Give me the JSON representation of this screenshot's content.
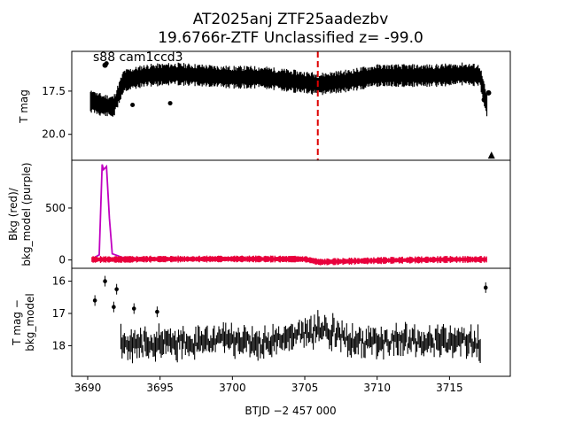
{
  "title_line1": "AT2025anj  ZTF25aadezbv",
  "title_line2": "19.6766r-ZTF Unclassified z= -99.0",
  "colors": {
    "data": "#000000",
    "bkg": "#e8003c",
    "bkg_model": "#c000c0",
    "marker": "#dd0000"
  },
  "chart_data": [
    {
      "type": "scatter",
      "annotation": "s88 cam1ccd3",
      "ylabel": "T mag",
      "ylim": [
        21.5,
        15.2
      ],
      "yticks": [
        "15.0",
        "17.5",
        "20.0"
      ],
      "xlim": [
        3688.9,
        3719.2
      ],
      "vline_x": 3705.9,
      "upper_limit_point": {
        "x": 3717.9,
        "y": 21.2
      },
      "bands": [
        {
          "x": 3690.2,
          "y": 18.1
        },
        {
          "x": 3691.0,
          "y": 18.3
        },
        {
          "x": 3691.8,
          "y": 18.4
        },
        {
          "x": 3692.5,
          "y": 16.9
        },
        {
          "x": 3694.0,
          "y": 16.6
        },
        {
          "x": 3696.0,
          "y": 16.5
        },
        {
          "x": 3698.0,
          "y": 16.6
        },
        {
          "x": 3700.0,
          "y": 16.7
        },
        {
          "x": 3702.0,
          "y": 16.7
        },
        {
          "x": 3704.0,
          "y": 16.9
        },
        {
          "x": 3706.0,
          "y": 17.1
        },
        {
          "x": 3708.0,
          "y": 16.9
        },
        {
          "x": 3710.0,
          "y": 16.6
        },
        {
          "x": 3712.0,
          "y": 16.6
        },
        {
          "x": 3714.0,
          "y": 16.6
        },
        {
          "x": 3716.0,
          "y": 16.5
        },
        {
          "x": 3717.1,
          "y": 16.6
        },
        {
          "x": 3717.6,
          "y": 18.4
        }
      ],
      "outliers": [
        {
          "x": 3691.3,
          "y": 15.9
        },
        {
          "x": 3693.1,
          "y": 18.3
        },
        {
          "x": 3695.7,
          "y": 18.2
        }
      ]
    },
    {
      "type": "line",
      "ylabel_line1": "Bkg (red)/",
      "ylabel_line2": "bkg_model (purple)",
      "ylim": [
        -80,
        960
      ],
      "yticks": [
        "0",
        "500"
      ],
      "xlim": [
        3688.9,
        3719.2
      ],
      "series": [
        {
          "points": [
            {
              "x": 3690.3,
              "y": 10
            },
            {
              "x": 3690.8,
              "y": 50
            },
            {
              "x": 3691.0,
              "y": 920
            },
            {
              "x": 3691.1,
              "y": 870
            },
            {
              "x": 3691.3,
              "y": 900
            },
            {
              "x": 3691.5,
              "y": 400
            },
            {
              "x": 3691.7,
              "y": 60
            },
            {
              "x": 3692.5,
              "y": 20
            },
            {
              "x": 3705.0,
              "y": 10
            },
            {
              "x": 3706.0,
              "y": -15
            },
            {
              "x": 3710.0,
              "y": 0
            },
            {
              "x": 3717.6,
              "y": 5
            }
          ]
        },
        {
          "points": [
            {
              "x": 3690.3,
              "y": 5
            },
            {
              "x": 3692.5,
              "y": 5
            },
            {
              "x": 3694.0,
              "y": 8
            },
            {
              "x": 3700.0,
              "y": 10
            },
            {
              "x": 3705.0,
              "y": 8
            },
            {
              "x": 3706.0,
              "y": -20
            },
            {
              "x": 3708.0,
              "y": -12
            },
            {
              "x": 3711.0,
              "y": -3
            },
            {
              "x": 3715.0,
              "y": 5
            },
            {
              "x": 3717.6,
              "y": 5
            }
          ]
        }
      ]
    },
    {
      "type": "scatter",
      "ylabel_line1": "T mag −",
      "ylabel_line2": "bkg_model",
      "ylim": [
        18.95,
        15.6
      ],
      "yticks": [
        "16",
        "17",
        "18"
      ],
      "xlim": [
        3688.9,
        3719.2
      ],
      "xticks": [
        "3690",
        "3695",
        "3700",
        "3705",
        "3710",
        "3715"
      ],
      "xlabel": "BTJD −2 457 000",
      "points": [
        {
          "x": 3690.5,
          "y": 16.6
        },
        {
          "x": 3691.2,
          "y": 16.0
        },
        {
          "x": 3691.8,
          "y": 16.8
        },
        {
          "x": 3692.0,
          "y": 16.25
        },
        {
          "x": 3693.2,
          "y": 16.85
        },
        {
          "x": 3694.8,
          "y": 16.95
        },
        {
          "x": 3717.5,
          "y": 16.2
        }
      ],
      "band": [
        {
          "x": 3692.3,
          "y": 17.9
        },
        {
          "x": 3694.0,
          "y": 17.95
        },
        {
          "x": 3696.0,
          "y": 17.9
        },
        {
          "x": 3698.0,
          "y": 17.9
        },
        {
          "x": 3700.0,
          "y": 17.85
        },
        {
          "x": 3702.0,
          "y": 17.9
        },
        {
          "x": 3703.5,
          "y": 17.75
        },
        {
          "x": 3705.0,
          "y": 17.6
        },
        {
          "x": 3706.0,
          "y": 17.5
        },
        {
          "x": 3707.0,
          "y": 17.6
        },
        {
          "x": 3708.5,
          "y": 17.9
        },
        {
          "x": 3710.0,
          "y": 17.9
        },
        {
          "x": 3712.0,
          "y": 17.85
        },
        {
          "x": 3714.0,
          "y": 17.9
        },
        {
          "x": 3716.0,
          "y": 17.85
        },
        {
          "x": 3717.2,
          "y": 17.95
        }
      ]
    }
  ]
}
